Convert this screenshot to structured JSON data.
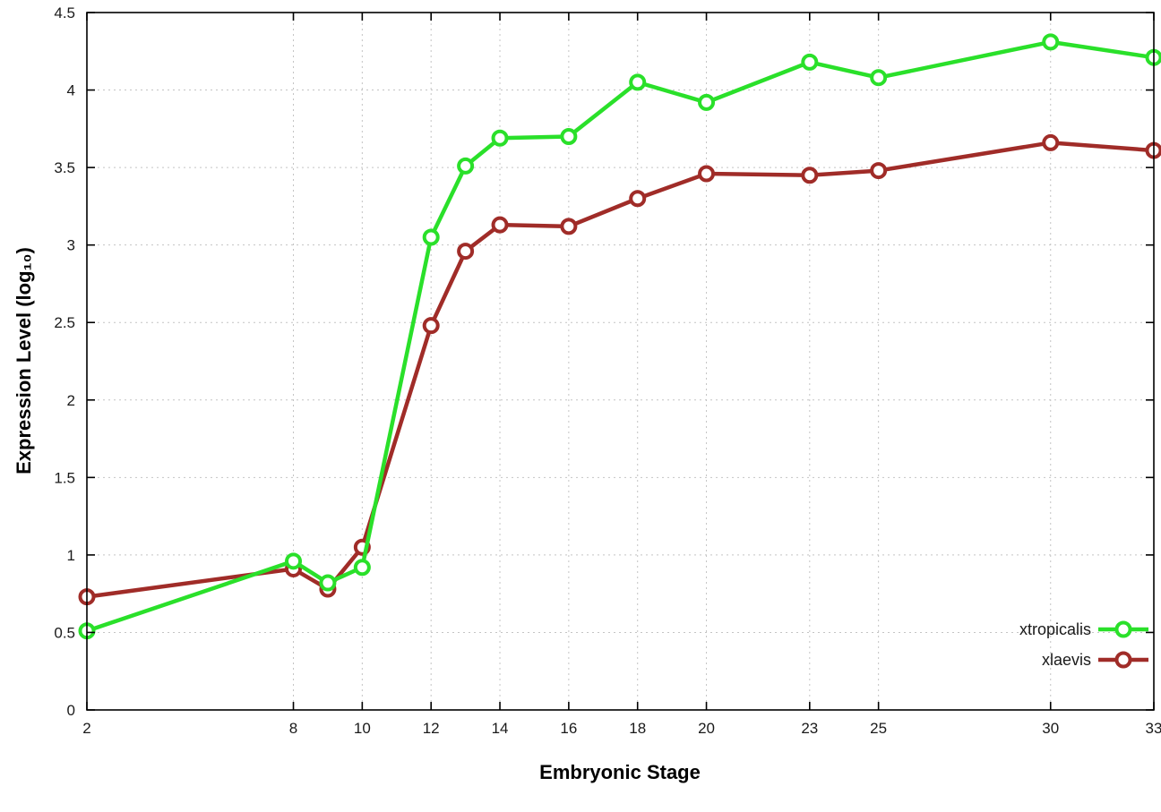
{
  "chart_data": {
    "type": "line",
    "title": "",
    "xlabel": "Embryonic Stage",
    "ylabel": "Expression Level (log₁₀)",
    "xlim": [
      2,
      33
    ],
    "ylim": [
      0,
      4.5
    ],
    "x_ticks": [
      2,
      8,
      10,
      12,
      14,
      16,
      18,
      20,
      23,
      25,
      30,
      33
    ],
    "y_ticks": [
      0,
      0.5,
      1,
      1.5,
      2,
      2.5,
      3,
      3.5,
      4,
      4.5
    ],
    "grid": true,
    "grid_color": "#c4c4c4",
    "background_color": "#ffffff",
    "border_color": "#000000",
    "legend_position": "bottom-right",
    "x": [
      2,
      8,
      9,
      10,
      12,
      13,
      14,
      16,
      18,
      20,
      23,
      25,
      30,
      33
    ],
    "series": [
      {
        "name": "xtropicalis",
        "color": "#2ae02a",
        "values": [
          0.51,
          0.96,
          0.82,
          0.92,
          3.05,
          3.51,
          3.69,
          3.7,
          4.05,
          3.92,
          4.18,
          4.08,
          4.31,
          4.21
        ]
      },
      {
        "name": "xlaevis",
        "color": "#a02c28",
        "values": [
          0.73,
          0.91,
          0.78,
          1.05,
          2.48,
          2.96,
          3.13,
          3.12,
          3.3,
          3.46,
          3.45,
          3.48,
          3.66,
          3.61
        ]
      }
    ]
  }
}
